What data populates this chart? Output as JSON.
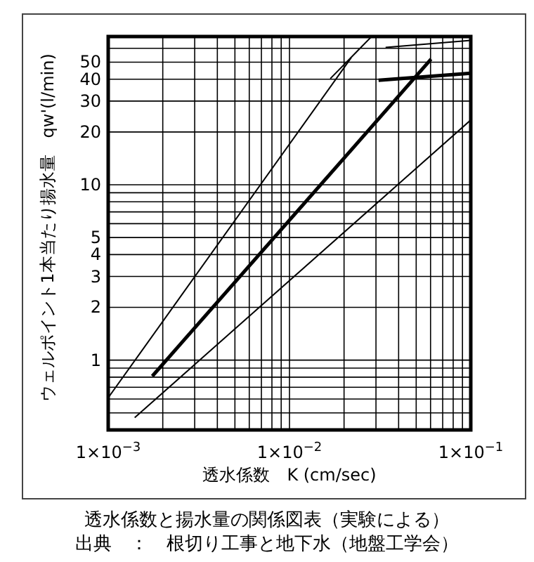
{
  "chart_data": {
    "type": "line",
    "xlabel": "透水係数　K (cm/sec)",
    "ylabel": "ウェルポイント1本当たり揚水量　qw'(l/min)",
    "log": "xy",
    "grid": true,
    "marker": "none",
    "line_style": "solid",
    "xlim": [
      0.001,
      0.1
    ],
    "xticks": [
      {
        "value": 0.001,
        "label": "1×10$^{−3}$"
      },
      {
        "value": 0.002,
        "label": null
      },
      {
        "value": 0.003,
        "label": null
      },
      {
        "value": 0.004,
        "label": null
      },
      {
        "value": 0.005,
        "label": null
      },
      {
        "value": 0.006,
        "label": null
      },
      {
        "value": 0.007,
        "label": null
      },
      {
        "value": 0.008,
        "label": null
      },
      {
        "value": 0.009,
        "label": null
      },
      {
        "value": 0.01,
        "label": "1×10$^{−2}$"
      },
      {
        "value": 0.02,
        "label": null
      },
      {
        "value": 0.03,
        "label": null
      },
      {
        "value": 0.04,
        "label": null
      },
      {
        "value": 0.05,
        "label": null
      },
      {
        "value": 0.06,
        "label": null
      },
      {
        "value": 0.07,
        "label": null
      },
      {
        "value": 0.08,
        "label": null
      },
      {
        "value": 0.09,
        "label": null
      },
      {
        "value": 0.1,
        "label": "1×10$^{−1}$"
      }
    ],
    "ylim": [
      0.4,
      70
    ],
    "yticks": [
      {
        "value": 0.4,
        "label": null
      },
      {
        "value": 0.5,
        "label": null
      },
      {
        "value": 0.6,
        "label": null
      },
      {
        "value": 0.7,
        "label": null
      },
      {
        "value": 0.8,
        "label": null
      },
      {
        "value": 0.9,
        "label": null
      },
      1,
      2,
      3,
      4,
      5,
      {
        "value": 6,
        "label": null
      },
      {
        "value": 7,
        "label": null
      },
      {
        "value": 8,
        "label": null
      },
      {
        "value": 9,
        "label": null
      },
      10,
      20,
      30,
      40,
      50,
      {
        "value": 60,
        "label": null
      },
      {
        "value": 70,
        "label": null
      }
    ],
    "series": [
      {
        "color": "#000000",
        "x": [
          0.001,
          0.0219
        ],
        "values": [
          0.61,
          53
        ]
      },
      {
        "color": "#000000",
        "x": [
          0.0168,
          0.0283
        ],
        "values": [
          40.3,
          69.8
        ]
      },
      {
        "color": "#000000",
        "x": [
          0.0339,
          0.1
        ],
        "values": [
          60.7,
          66.5
        ]
      },
      {
        "color": "#000000",
        "x": [
          0.00175,
          0.0604
        ],
        "values": [
          0.81,
          52
        ]
      },
      {
        "color": "#000000",
        "x": [
          0.031,
          0.1
        ],
        "values": [
          39.4,
          43.2
        ]
      },
      {
        "color": "#000000",
        "x": [
          0.0014,
          0.1
        ],
        "values": [
          0.47,
          23.4
        ]
      }
    ],
    "annotations": [
      "透水係数と揚水量の関係図表（実験による）",
      "出典　：　根切り工事と地下水（地盤工学会）"
    ]
  }
}
